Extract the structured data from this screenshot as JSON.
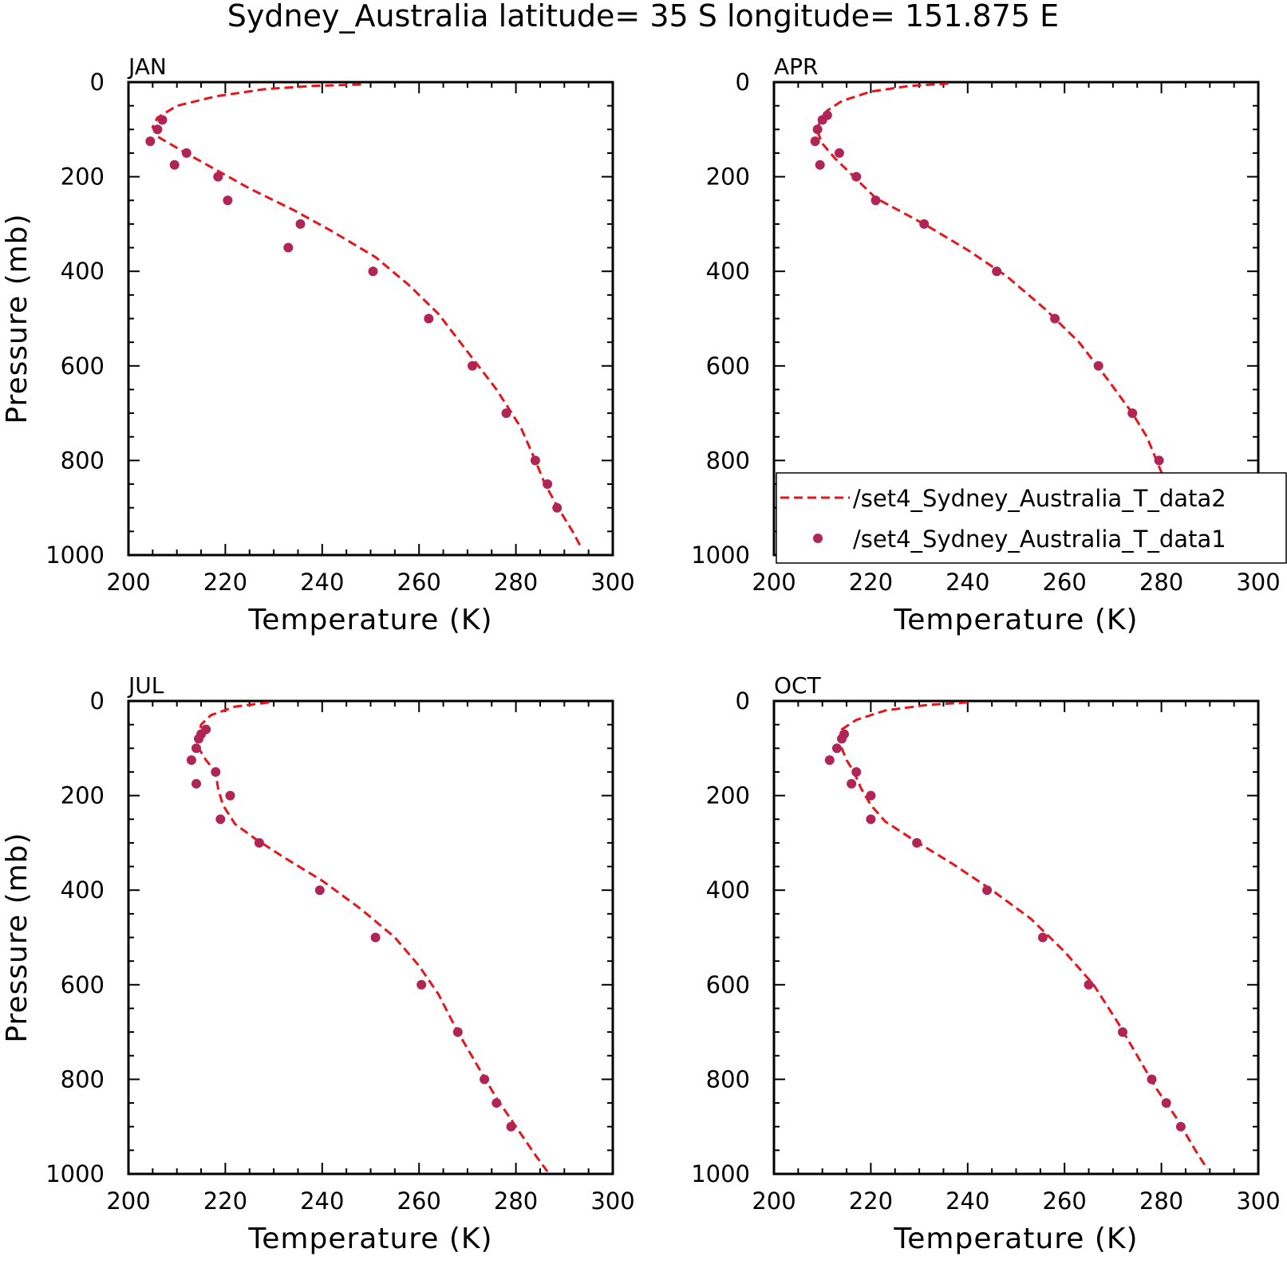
{
  "title": "Sydney_Australia   latitude=  35 S longitude=  151.875 E",
  "colors": {
    "model": "#e8141c",
    "obs": "#b02456",
    "axis": "#000000"
  },
  "legend": {
    "entries": [
      {
        "label": "/set4_Sydney_Australia_T_data2",
        "style": "dashed-line"
      },
      {
        "label": "/set4_Sydney_Australia_T_data1",
        "style": "dot"
      }
    ]
  },
  "chart_data": [
    {
      "type": "line",
      "panel": "JAN",
      "xlabel": "Temperature (K)",
      "ylabel": "Pressure (mb)",
      "xlim": [
        200,
        300
      ],
      "ylim": [
        1000,
        0
      ],
      "xticks": [
        "200",
        "220",
        "240",
        "260",
        "280",
        "300"
      ],
      "yticks": [
        "0",
        "200",
        "400",
        "600",
        "800",
        "1000"
      ],
      "series": [
        {
          "name": "/set4_Sydney_Australia_T_data2",
          "style": "dashed",
          "points": [
            [
              248,
              5
            ],
            [
              238,
              8
            ],
            [
              228,
              15
            ],
            [
              218,
              30
            ],
            [
              210,
              50
            ],
            [
              206,
              75
            ],
            [
              205,
              95
            ],
            [
              206,
              115
            ],
            [
              211,
              145
            ],
            [
              218,
              185
            ],
            [
              225,
              225
            ],
            [
              234,
              270
            ],
            [
              242,
              315
            ],
            [
              251,
              370
            ],
            [
              258,
              430
            ],
            [
              264,
              490
            ],
            [
              270,
              570
            ],
            [
              276,
              650
            ],
            [
              281,
              730
            ],
            [
              284,
              800
            ],
            [
              286,
              850
            ],
            [
              289,
              905
            ],
            [
              292,
              955
            ],
            [
              293.5,
              985
            ]
          ]
        },
        {
          "name": "/set4_Sydney_Australia_T_data1",
          "style": "dots",
          "points": [
            [
              207,
              80
            ],
            [
              206,
              100
            ],
            [
              204.5,
              125
            ],
            [
              212,
              150
            ],
            [
              209.5,
              175
            ],
            [
              218.5,
              200
            ],
            [
              220.5,
              250
            ],
            [
              235.5,
              300
            ],
            [
              233,
              350
            ],
            [
              250.5,
              400
            ],
            [
              262,
              500
            ],
            [
              271,
              600
            ],
            [
              278,
              700
            ],
            [
              284,
              800
            ],
            [
              286.5,
              850
            ],
            [
              288.5,
              900
            ]
          ]
        }
      ]
    },
    {
      "type": "line",
      "panel": "APR",
      "xlabel": "Temperature (K)",
      "ylabel": "",
      "xlim": [
        200,
        300
      ],
      "ylim": [
        1000,
        0
      ],
      "xticks": [
        "200",
        "220",
        "240",
        "260",
        "280",
        "300"
      ],
      "yticks": [
        "0",
        "200",
        "400",
        "600",
        "800",
        "1000"
      ],
      "legend": "bottom-right",
      "series": [
        {
          "name": "/set4_Sydney_Australia_T_data2",
          "style": "dashed",
          "points": [
            [
              236,
              3
            ],
            [
              228,
              8
            ],
            [
              220,
              20
            ],
            [
              214,
              40
            ],
            [
              211,
              60
            ],
            [
              209.5,
              80
            ],
            [
              209,
              105
            ],
            [
              210,
              130
            ],
            [
              212.5,
              160
            ],
            [
              216,
              195
            ],
            [
              221,
              245
            ],
            [
              231,
              300
            ],
            [
              240,
              355
            ],
            [
              248,
              410
            ],
            [
              256,
              480
            ],
            [
              263,
              550
            ],
            [
              269,
              630
            ],
            [
              274,
              700
            ],
            [
              277,
              750
            ],
            [
              279,
              800
            ],
            [
              281,
              850
            ],
            [
              285,
              900
            ],
            [
              289,
              955
            ],
            [
              291.5,
              995
            ]
          ]
        },
        {
          "name": "/set4_Sydney_Australia_T_data1",
          "style": "dots",
          "points": [
            [
              211,
              70
            ],
            [
              210,
              80
            ],
            [
              209,
              100
            ],
            [
              208.5,
              125
            ],
            [
              213.5,
              150
            ],
            [
              209.5,
              175
            ],
            [
              217,
              200
            ],
            [
              221,
              250
            ],
            [
              231,
              300
            ],
            [
              246,
              400
            ],
            [
              258,
              500
            ],
            [
              267,
              600
            ],
            [
              274,
              700
            ],
            [
              279.5,
              800
            ],
            [
              282,
              850
            ],
            [
              285,
              900
            ]
          ]
        }
      ]
    },
    {
      "type": "line",
      "panel": "JUL",
      "xlabel": "Temperature (K)",
      "ylabel": "Pressure (mb)",
      "xlim": [
        200,
        300
      ],
      "ylim": [
        1000,
        0
      ],
      "xticks": [
        "200",
        "220",
        "240",
        "260",
        "280",
        "300"
      ],
      "yticks": [
        "0",
        "200",
        "400",
        "600",
        "800",
        "1000"
      ],
      "series": [
        {
          "name": "/set4_Sydney_Australia_T_data2",
          "style": "dashed",
          "points": [
            [
              229,
              3
            ],
            [
              222,
              12
            ],
            [
              217,
              30
            ],
            [
              215,
              50
            ],
            [
              214.5,
              70
            ],
            [
              214.5,
              100
            ],
            [
              216,
              125
            ],
            [
              218,
              150
            ],
            [
              218.5,
              185
            ],
            [
              219.5,
              220
            ],
            [
              222,
              260
            ],
            [
              226,
              290
            ],
            [
              232,
              330
            ],
            [
              240,
              380
            ],
            [
              248,
              440
            ],
            [
              255,
              500
            ],
            [
              260,
              560
            ],
            [
              264,
              620
            ],
            [
              268,
              700
            ],
            [
              272,
              770
            ],
            [
              276,
              840
            ],
            [
              280,
              900
            ],
            [
              284,
              960
            ],
            [
              286.5,
              995
            ]
          ]
        },
        {
          "name": "/set4_Sydney_Australia_T_data1",
          "style": "dots",
          "points": [
            [
              216,
              60
            ],
            [
              215,
              70
            ],
            [
              214.5,
              80
            ],
            [
              214,
              100
            ],
            [
              213,
              125
            ],
            [
              218,
              150
            ],
            [
              214,
              175
            ],
            [
              221,
              200
            ],
            [
              219,
              250
            ],
            [
              227,
              300
            ],
            [
              239.5,
              400
            ],
            [
              251,
              500
            ],
            [
              260.5,
              600
            ],
            [
              268,
              700
            ],
            [
              273.5,
              800
            ],
            [
              276,
              850
            ],
            [
              279,
              900
            ]
          ]
        }
      ]
    },
    {
      "type": "line",
      "panel": "OCT",
      "xlabel": "Temperature (K)",
      "ylabel": "",
      "xlim": [
        200,
        300
      ],
      "ylim": [
        1000,
        0
      ],
      "xticks": [
        "200",
        "220",
        "240",
        "260",
        "280",
        "300"
      ],
      "yticks": [
        "0",
        "200",
        "400",
        "600",
        "800",
        "1000"
      ],
      "series": [
        {
          "name": "/set4_Sydney_Australia_T_data2",
          "style": "dashed",
          "points": [
            [
              240,
              3
            ],
            [
              232,
              8
            ],
            [
              223,
              20
            ],
            [
              217,
              40
            ],
            [
              214,
              60
            ],
            [
              213.5,
              80
            ],
            [
              214,
              100
            ],
            [
              215,
              125
            ],
            [
              216.5,
              150
            ],
            [
              218,
              185
            ],
            [
              220,
              220
            ],
            [
              223,
              255
            ],
            [
              229,
              295
            ],
            [
              237,
              345
            ],
            [
              245,
              400
            ],
            [
              253,
              460
            ],
            [
              260,
              530
            ],
            [
              266,
              600
            ],
            [
              271,
              680
            ],
            [
              275,
              750
            ],
            [
              279,
              820
            ],
            [
              283,
              880
            ],
            [
              287,
              950
            ],
            [
              289.5,
              990
            ]
          ]
        },
        {
          "name": "/set4_Sydney_Australia_T_data1",
          "style": "dots",
          "points": [
            [
              214.5,
              70
            ],
            [
              214,
              80
            ],
            [
              213,
              100
            ],
            [
              211.5,
              125
            ],
            [
              217,
              150
            ],
            [
              216,
              175
            ],
            [
              220,
              200
            ],
            [
              220,
              250
            ],
            [
              229.5,
              300
            ],
            [
              244,
              400
            ],
            [
              255.5,
              500
            ],
            [
              265,
              600
            ],
            [
              272,
              700
            ],
            [
              278,
              800
            ],
            [
              281,
              850
            ],
            [
              284,
              900
            ]
          ]
        }
      ]
    }
  ]
}
